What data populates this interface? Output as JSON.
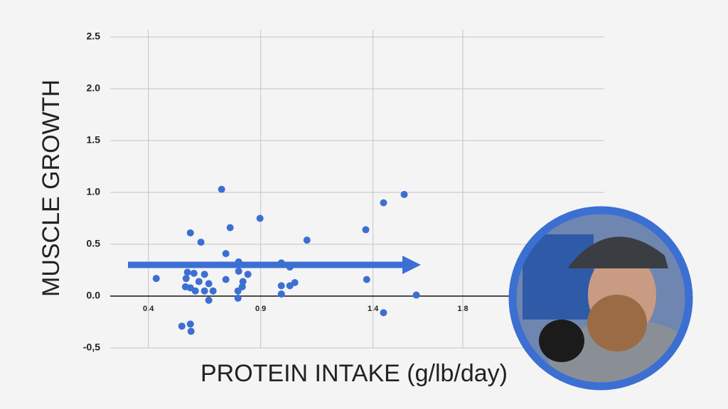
{
  "chart_data": {
    "type": "scatter",
    "x_label": "PROTEIN INTAKE (g/lb/day)",
    "y_label": "MUSCLE GROWTH",
    "color": "#3c6fd2",
    "grid": true,
    "xlim": [
      0.23,
      2.43
    ],
    "ylim": [
      -0.5,
      2.5
    ],
    "xticks": [
      0.4,
      0.9,
      1.4,
      1.8
    ],
    "yticks": [
      {
        "value": -0.5,
        "label": "-0,5"
      },
      {
        "value": 0,
        "label": "0.0"
      },
      0.5,
      {
        "value": 1,
        "label": "1.0"
      },
      1.5,
      {
        "value": 2,
        "label": "2.0"
      },
      2.5
    ],
    "x": [
      0.435,
      0.587,
      0.634,
      0.726,
      0.764,
      0.897,
      0.745,
      0.802,
      0.574,
      0.603,
      0.65,
      0.568,
      0.625,
      0.565,
      0.587,
      0.609,
      0.65,
      0.669,
      0.688,
      0.669,
      0.745,
      0.802,
      0.821,
      0.843,
      0.818,
      0.799,
      0.799,
      0.549,
      0.587,
      0.59,
      0.992,
      1.03,
      0.992,
      1.03,
      1.052,
      0.992,
      1.106,
      1.368,
      1.447,
      1.539,
      1.372,
      1.447,
      1.593
    ],
    "values": [
      0.17,
      0.61,
      0.52,
      1.03,
      0.66,
      0.75,
      0.41,
      0.33,
      0.23,
      0.22,
      0.21,
      0.17,
      0.14,
      0.09,
      0.08,
      0.05,
      0.05,
      0.12,
      0.05,
      -0.04,
      0.16,
      0.24,
      0.14,
      0.21,
      0.09,
      0.05,
      -0.02,
      -0.29,
      -0.27,
      -0.34,
      0.32,
      0.28,
      0.1,
      0.1,
      0.13,
      0.02,
      0.54,
      0.64,
      0.9,
      0.98,
      0.16,
      -0.16,
      0.01
    ]
  }
}
